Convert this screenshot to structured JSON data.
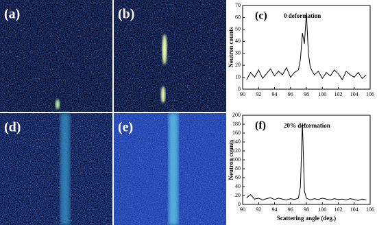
{
  "panels": [
    {
      "label": "(a)"
    },
    {
      "label": "(b)"
    },
    {
      "label": "(d)"
    },
    {
      "label": "(e)"
    }
  ],
  "chart_data": [
    {
      "type": "line",
      "panel_label": "(c)",
      "annotation": "0  deformation",
      "y_label": "Neutron counts",
      "color": "#000000",
      "x": [
        90.5,
        91,
        91.5,
        92,
        92.5,
        93,
        93.5,
        94,
        94.5,
        95,
        95.5,
        96,
        96.5,
        97,
        97.25,
        97.5,
        97.75,
        98,
        98.25,
        98.5,
        99,
        99.5,
        100,
        100.5,
        101,
        101.5,
        102,
        102.5,
        103,
        103.5,
        104,
        104.5,
        105,
        105.5
      ],
      "values": [
        8,
        14,
        10,
        16,
        9,
        13,
        17,
        11,
        15,
        12,
        18,
        10,
        14,
        16,
        25,
        47,
        38,
        64,
        30,
        18,
        12,
        15,
        9,
        14,
        11,
        16,
        13,
        8,
        15,
        12,
        10,
        14,
        9,
        12
      ],
      "xlim": [
        90,
        106
      ],
      "xticks": [
        90,
        92,
        94,
        96,
        98,
        100,
        102,
        104,
        106
      ],
      "ylim": [
        0,
        70
      ],
      "yticks": [
        0,
        10,
        20,
        30,
        40,
        50,
        60,
        70
      ]
    },
    {
      "type": "line",
      "panel_label": "(f)",
      "annotation": "20% deformation",
      "y_label": "Neutron counts",
      "x_label": "Scattering angle (deg.)",
      "color": "#000000",
      "x": [
        90.5,
        91,
        91.5,
        92,
        92.5,
        93,
        93.5,
        94,
        94.5,
        95,
        95.5,
        96,
        96.5,
        97,
        97.25,
        97.5,
        97.75,
        98,
        98.25,
        98.5,
        99,
        99.5,
        100,
        100.5,
        101,
        101.5,
        102,
        102.5,
        103,
        103.5,
        104,
        104.5,
        105,
        105.5
      ],
      "values": [
        15,
        22,
        12,
        14,
        10,
        13,
        15,
        11,
        14,
        12,
        10,
        13,
        11,
        14,
        40,
        182,
        30,
        14,
        12,
        10,
        13,
        11,
        14,
        12,
        10,
        13,
        11,
        12,
        10,
        13,
        11,
        9,
        12,
        10
      ],
      "xlim": [
        90,
        106
      ],
      "xticks": [
        90,
        92,
        94,
        96,
        98,
        100,
        102,
        104,
        106
      ],
      "ylim": [
        0,
        200
      ],
      "yticks": [
        0,
        20,
        40,
        60,
        80,
        100,
        120,
        140,
        160,
        180,
        200
      ]
    }
  ]
}
